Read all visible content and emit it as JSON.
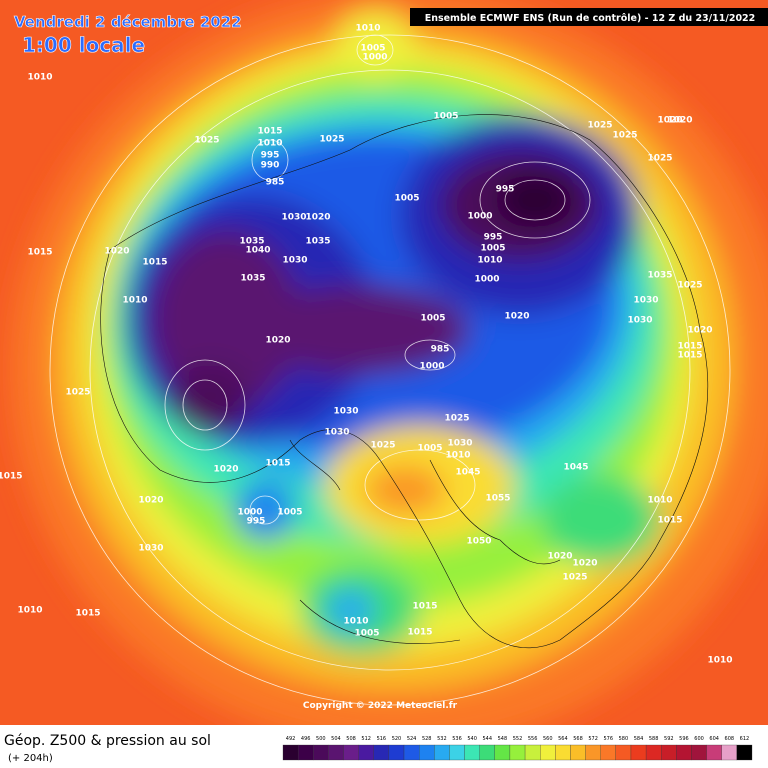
{
  "header": {
    "date": "Vendredi 2 décembre 2022",
    "time": "1:00 locale",
    "run": "Ensemble ECMWF ENS  (Run de contrôle)  -  12 Z du 23/11/2022"
  },
  "footer": {
    "title": "Géop. Z500 & pression au sol",
    "lead": "(+ 204h)",
    "copyright": "Copyright © 2022 Meteociel.fr"
  },
  "scale": {
    "levels": [
      492,
      496,
      500,
      504,
      508,
      512,
      516,
      520,
      524,
      528,
      532,
      536,
      540,
      544,
      548,
      552,
      556,
      560,
      564,
      568,
      572,
      576,
      580,
      584,
      588,
      592,
      596,
      600,
      604,
      608,
      612
    ],
    "colors": [
      "#2a0030",
      "#3c0048",
      "#4b0a5a",
      "#5a1470",
      "#6a1e8a",
      "#4a1aa0",
      "#2828b4",
      "#1e3cd2",
      "#1e5ae6",
      "#1e82f0",
      "#28aaf0",
      "#3cd2e6",
      "#3ce6b4",
      "#3cdc78",
      "#64e646",
      "#96f03c",
      "#c8f03c",
      "#f0f03c",
      "#fadc32",
      "#fabe28",
      "#fa9628",
      "#fa7828",
      "#f55a23",
      "#eb3c1e",
      "#dc2823",
      "#c81e28",
      "#b41432",
      "#a0143c",
      "#c83c78",
      "#e6a0c8",
      "#000000"
    ]
  },
  "isobar_labels": [
    "1010",
    "1005",
    "1000",
    "1010",
    "1005",
    "1025",
    "1015",
    "1010",
    "995",
    "990",
    "985",
    "1025",
    "1005",
    "995",
    "1000",
    "995",
    "1005",
    "1010",
    "1000",
    "1025",
    "1025",
    "1020",
    "1025",
    "1015",
    "1020",
    "1015",
    "1010",
    "1035",
    "1040",
    "1030",
    "1020",
    "1035",
    "1035",
    "1030",
    "1020",
    "985",
    "1000",
    "1005",
    "1020",
    "1025",
    "1030",
    "1030",
    "1025",
    "1030",
    "1005",
    "1010",
    "1015",
    "1020",
    "1000",
    "995",
    "1005",
    "1030",
    "1045",
    "1055",
    "1045",
    "1050",
    "1020",
    "1025",
    "1020",
    "1010",
    "1005",
    "1015",
    "1015",
    "1020",
    "1015",
    "1010",
    "1015",
    "1025",
    "1030",
    "1020",
    "1015",
    "1010",
    "1015",
    "1035",
    "1030",
    "1025",
    "1020",
    "1015",
    "1010"
  ]
}
